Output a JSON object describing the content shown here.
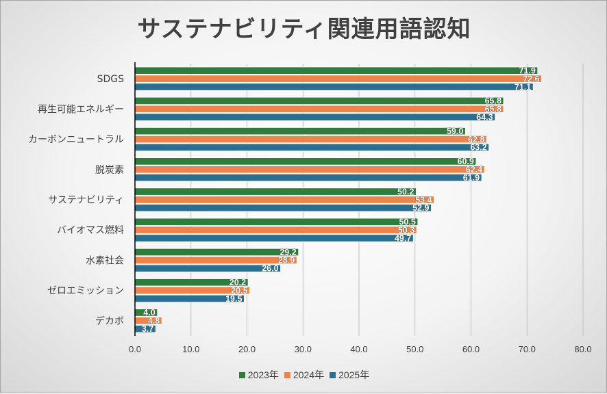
{
  "chart_data": {
    "type": "bar",
    "orientation": "horizontal",
    "title": "サステナビリティ関連用語認知",
    "categories": [
      "SDGS",
      "再生可能エネルギー",
      "カーボンニュートラル",
      "脱炭素",
      "サステナビリティ",
      "バイオマス燃料",
      "水素社会",
      "ゼロエミッション",
      "デカボ"
    ],
    "series": [
      {
        "name": "2023年",
        "color": "#2e7d3c",
        "values": [
          71.9,
          65.8,
          59.0,
          60.9,
          50.2,
          50.5,
          29.2,
          20.2,
          4.0
        ]
      },
      {
        "name": "2024年",
        "color": "#ee8449",
        "values": [
          72.6,
          65.8,
          62.8,
          62.4,
          53.4,
          50.3,
          28.9,
          20.5,
          4.8
        ]
      },
      {
        "name": "2025年",
        "color": "#2a6f8f",
        "values": [
          71.1,
          64.3,
          63.2,
          61.9,
          52.9,
          49.7,
          26.0,
          19.5,
          3.7
        ]
      }
    ],
    "xlim": [
      0,
      80
    ],
    "xticks": [
      "0.0",
      "10.0",
      "20.0",
      "30.0",
      "40.0",
      "50.0",
      "60.0",
      "70.0",
      "80.0"
    ],
    "grid": true,
    "legend_position": "bottom",
    "data_labels": true
  }
}
